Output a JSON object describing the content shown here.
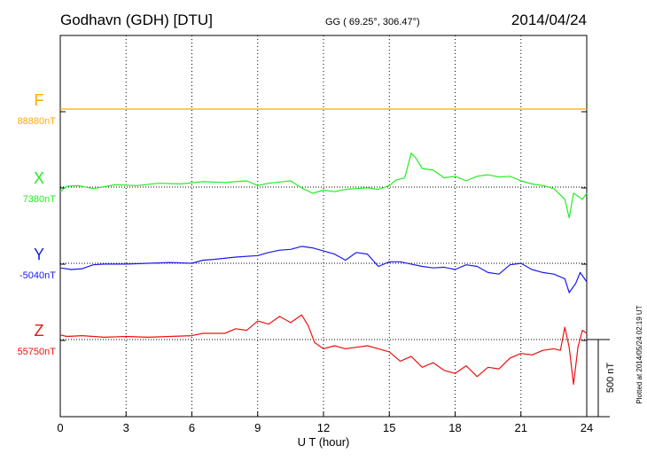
{
  "header": {
    "station": "Godhavn (GDH)  [DTU]",
    "coords": "GG ( 69.25°, 306.47°)",
    "date": "2014/04/24"
  },
  "footer": {
    "plotted": "Plotted at 2014/05/24 02:19 UT",
    "scale_label": "500 nT"
  },
  "chart_data": {
    "type": "line",
    "xlabel": "U T (hour)",
    "xlim": [
      0,
      24
    ],
    "xticks": [
      0,
      3,
      6,
      9,
      12,
      15,
      18,
      21,
      24
    ],
    "scale_bar_nT": 500,
    "grid": true,
    "series": [
      {
        "name": "F",
        "baseline_label": "88880nT",
        "baseline_nT": 88880,
        "color": "#ffaa00",
        "points": [
          [
            0,
            0
          ],
          [
            24,
            0
          ]
        ]
      },
      {
        "name": "X",
        "baseline_label": "7380nT",
        "baseline_nT": 7380,
        "color": "#22ee22",
        "points": [
          [
            0,
            -30
          ],
          [
            0.3,
            5
          ],
          [
            0.8,
            10
          ],
          [
            1.5,
            -10
          ],
          [
            2.5,
            15
          ],
          [
            3.5,
            10
          ],
          [
            4.5,
            25
          ],
          [
            5.5,
            20
          ],
          [
            6.5,
            35
          ],
          [
            7.5,
            30
          ],
          [
            8.5,
            40
          ],
          [
            9,
            10
          ],
          [
            9.5,
            25
          ],
          [
            10.5,
            40
          ],
          [
            11,
            -5
          ],
          [
            11.5,
            -40
          ],
          [
            12,
            -20
          ],
          [
            12.5,
            -30
          ],
          [
            13,
            -15
          ],
          [
            13.5,
            -10
          ],
          [
            14,
            -5
          ],
          [
            14.5,
            -15
          ],
          [
            15,
            10
          ],
          [
            15.3,
            45
          ],
          [
            15.7,
            60
          ],
          [
            16,
            220
          ],
          [
            16.2,
            190
          ],
          [
            16.5,
            120
          ],
          [
            17,
            110
          ],
          [
            17.5,
            60
          ],
          [
            18,
            70
          ],
          [
            18.5,
            40
          ],
          [
            19,
            70
          ],
          [
            19.5,
            80
          ],
          [
            20,
            65
          ],
          [
            20.5,
            70
          ],
          [
            21,
            40
          ],
          [
            21.5,
            20
          ],
          [
            22,
            10
          ],
          [
            22.5,
            -10
          ],
          [
            23,
            -80
          ],
          [
            23.2,
            -200
          ],
          [
            23.4,
            -40
          ],
          [
            23.6,
            -60
          ],
          [
            23.8,
            -80
          ],
          [
            24,
            -40
          ]
        ]
      },
      {
        "name": "Y",
        "baseline_label": "-5040nT",
        "baseline_nT": -5040,
        "color": "#1a1aee",
        "points": [
          [
            0,
            -30
          ],
          [
            0.5,
            -40
          ],
          [
            1,
            -35
          ],
          [
            1.5,
            -10
          ],
          [
            2,
            -5
          ],
          [
            3,
            -5
          ],
          [
            4,
            0
          ],
          [
            5,
            5
          ],
          [
            6,
            0
          ],
          [
            6.5,
            20
          ],
          [
            7,
            25
          ],
          [
            8,
            40
          ],
          [
            9,
            50
          ],
          [
            9.5,
            70
          ],
          [
            10,
            85
          ],
          [
            10.5,
            90
          ],
          [
            11,
            110
          ],
          [
            11.5,
            100
          ],
          [
            12,
            80
          ],
          [
            12.5,
            60
          ],
          [
            13,
            20
          ],
          [
            13.5,
            70
          ],
          [
            14,
            60
          ],
          [
            14.5,
            -20
          ],
          [
            15,
            10
          ],
          [
            15.5,
            10
          ],
          [
            16,
            -5
          ],
          [
            16.5,
            -20
          ],
          [
            17,
            -30
          ],
          [
            17.5,
            -25
          ],
          [
            18,
            -40
          ],
          [
            18.5,
            -10
          ],
          [
            19,
            -20
          ],
          [
            19.5,
            -60
          ],
          [
            20,
            -70
          ],
          [
            20.5,
            -10
          ],
          [
            21,
            0
          ],
          [
            21.5,
            -40
          ],
          [
            22,
            -60
          ],
          [
            22.5,
            -70
          ],
          [
            23,
            -100
          ],
          [
            23.2,
            -190
          ],
          [
            23.5,
            -130
          ],
          [
            23.7,
            -60
          ],
          [
            24,
            -120
          ]
        ]
      },
      {
        "name": "Z",
        "baseline_label": "55750nT",
        "baseline_nT": 55750,
        "color": "#ee1111",
        "points": [
          [
            0,
            30
          ],
          [
            0.3,
            20
          ],
          [
            1,
            25
          ],
          [
            2,
            15
          ],
          [
            3,
            20
          ],
          [
            4,
            15
          ],
          [
            5,
            20
          ],
          [
            6,
            25
          ],
          [
            6.5,
            40
          ],
          [
            7.5,
            40
          ],
          [
            8,
            70
          ],
          [
            8.5,
            60
          ],
          [
            9,
            120
          ],
          [
            9.5,
            100
          ],
          [
            10,
            150
          ],
          [
            10.5,
            110
          ],
          [
            11,
            160
          ],
          [
            11.3,
            90
          ],
          [
            11.6,
            -20
          ],
          [
            12,
            -60
          ],
          [
            12.5,
            -40
          ],
          [
            13,
            -60
          ],
          [
            13.5,
            -50
          ],
          [
            14,
            -40
          ],
          [
            14.5,
            -60
          ],
          [
            15,
            -80
          ],
          [
            15.5,
            -140
          ],
          [
            16,
            -110
          ],
          [
            16.5,
            -180
          ],
          [
            17,
            -150
          ],
          [
            17.5,
            -200
          ],
          [
            18,
            -220
          ],
          [
            18.5,
            -170
          ],
          [
            19,
            -240
          ],
          [
            19.5,
            -180
          ],
          [
            20,
            -190
          ],
          [
            20.5,
            -120
          ],
          [
            21,
            -90
          ],
          [
            21.5,
            -100
          ],
          [
            22,
            -70
          ],
          [
            22.5,
            -60
          ],
          [
            22.8,
            -70
          ],
          [
            23,
            80
          ],
          [
            23.2,
            -50
          ],
          [
            23.4,
            -290
          ],
          [
            23.6,
            -50
          ],
          [
            23.8,
            60
          ],
          [
            24,
            40
          ]
        ]
      }
    ]
  }
}
